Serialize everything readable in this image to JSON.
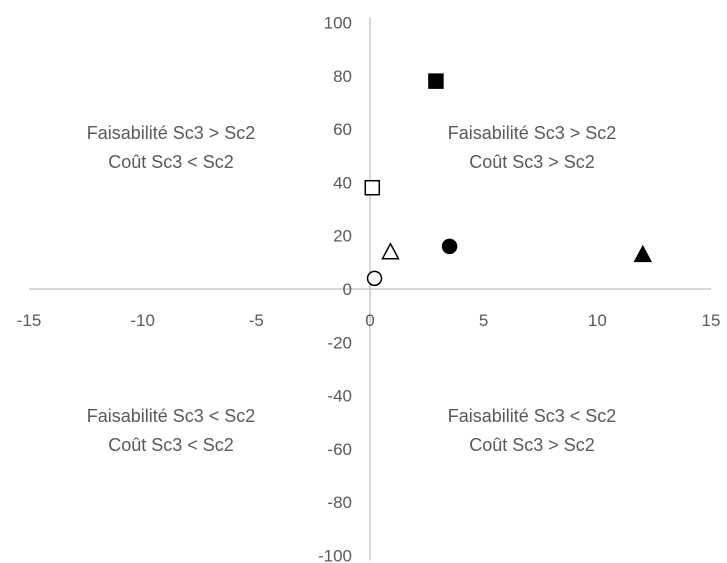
{
  "chart_data": {
    "type": "scatter",
    "title": "",
    "xlabel": "",
    "ylabel": "",
    "xlim": [
      -15,
      15
    ],
    "ylim": [
      -100,
      100
    ],
    "x_ticks": [
      "-15",
      "-10",
      "-5",
      "0",
      "5",
      "10",
      "15"
    ],
    "y_ticks": [
      "100",
      "80",
      "60",
      "40",
      "20",
      "0",
      "-20",
      "-40",
      "-60",
      "-80",
      "-100"
    ],
    "grid": false,
    "axis_color": "#bfbfbf",
    "text_color": "#595959",
    "series": [
      {
        "marker": "square",
        "filled": true,
        "x": 2.9,
        "y": 78
      },
      {
        "marker": "square",
        "filled": false,
        "x": 0.1,
        "y": 38
      },
      {
        "marker": "triangle",
        "filled": false,
        "x": 0.9,
        "y": 14
      },
      {
        "marker": "circle",
        "filled": true,
        "x": 3.5,
        "y": 16
      },
      {
        "marker": "triangle",
        "filled": true,
        "x": 12.0,
        "y": 13
      },
      {
        "marker": "circle",
        "filled": false,
        "x": 0.2,
        "y": 4
      }
    ],
    "annotations": {
      "top_left": [
        "Faisabilité Sc3 > Sc2",
        "Coût Sc3 < Sc2"
      ],
      "top_right": [
        "Faisabilité Sc3 > Sc2",
        "Coût Sc3 > Sc2"
      ],
      "bottom_left": [
        "Faisabilité Sc3 < Sc2",
        "Coût Sc3 < Sc2"
      ],
      "bottom_right": [
        "Faisabilité Sc3 < Sc2",
        "Coût Sc3 > Sc2"
      ]
    }
  }
}
